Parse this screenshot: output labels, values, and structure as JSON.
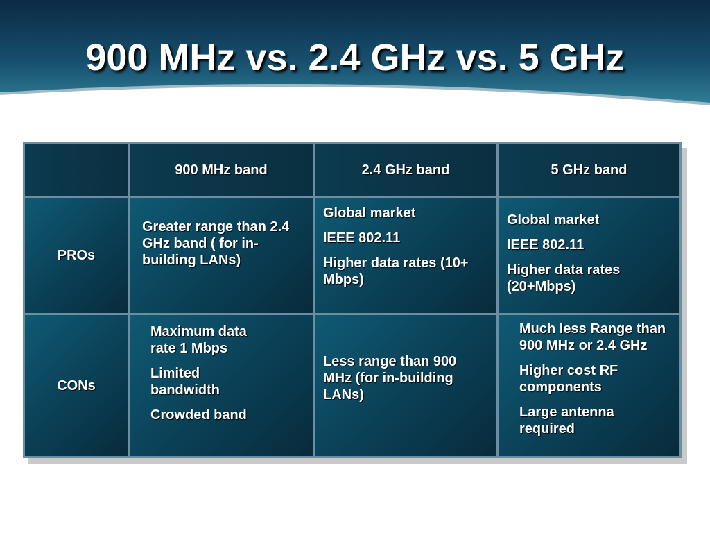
{
  "title": "900 MHz vs. 2.4 GHz vs. 5 GHz",
  "table": {
    "header": [
      "900 MHz band",
      "2.4 GHz band",
      "5 GHz band"
    ],
    "rows": [
      {
        "label": "PROs",
        "cells": [
          [
            "Greater range than 2.4 GHz band ( for in-building LANs)"
          ],
          [
            "Global market",
            "IEEE 802.11",
            "Higher data rates (10+ Mbps)"
          ],
          [
            "Global market",
            "IEEE 802.11",
            "Higher data rates (20+Mbps)"
          ]
        ]
      },
      {
        "label": "CONs",
        "cells": [
          [
            "Maximum data rate 1  Mbps",
            "Limited bandwidth",
            "Crowded band"
          ],
          [
            "Less range than 900 MHz (for in-building LANs)"
          ],
          [
            "Much less Range than 900 MHz or 2.4 GHz",
            "Higher cost RF components",
            "Large antenna required"
          ]
        ]
      }
    ]
  }
}
